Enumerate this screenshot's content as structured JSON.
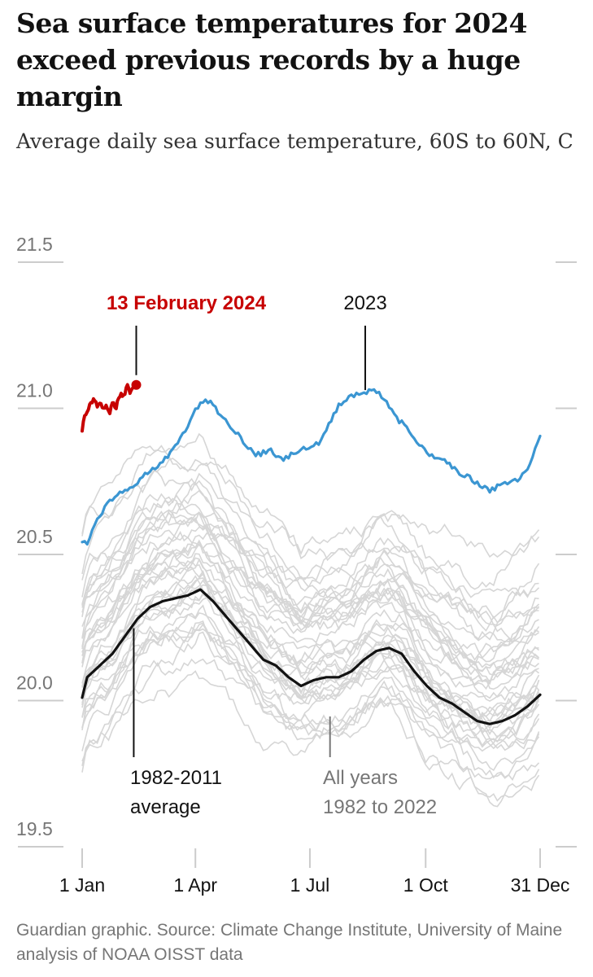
{
  "header": {
    "title": "Sea surface temperatures for 2024 exceed previous records by a huge margin",
    "subtitle": "Average daily sea surface temperature, 60S to 60N, C"
  },
  "footer": {
    "source": "Guardian graphic. Source: Climate Change Institute, University of Maine analysis of NOAA OISST data"
  },
  "colors": {
    "y2024": "#c70000",
    "y2023": "#3b96d2",
    "average": "#121212",
    "history": "#d6d6d6",
    "axis": "#cccccc"
  },
  "chart_data": {
    "type": "line",
    "title": "Sea surface temperatures for 2024 exceed previous records by a huge margin",
    "ylabel": "Average daily sea surface temperature, 60S to 60N, C",
    "xlabel": "",
    "ylim": [
      19.5,
      21.5
    ],
    "xlim": [
      1,
      365
    ],
    "y_ticks": [
      {
        "value": 21.5,
        "label": "21.5"
      },
      {
        "value": 21.0,
        "label": "21.0"
      },
      {
        "value": 20.5,
        "label": "20.5"
      },
      {
        "value": 20.0,
        "label": "20.0"
      },
      {
        "value": 19.5,
        "label": "19.5"
      }
    ],
    "x_ticks": [
      {
        "day": 1,
        "label": "1 Jan"
      },
      {
        "day": 91,
        "label": "1 Apr"
      },
      {
        "day": 182,
        "label": "1 Jul"
      },
      {
        "day": 274,
        "label": "1 Oct"
      },
      {
        "day": 365,
        "label": "31 Dec"
      }
    ],
    "series": [
      {
        "name": "2024",
        "days": [
          1,
          3,
          5,
          8,
          10,
          13,
          15,
          18,
          20,
          23,
          25,
          28,
          30,
          32,
          34,
          37,
          39,
          41,
          42,
          44
        ],
        "values": [
          20.93,
          20.97,
          20.99,
          21.02,
          21.03,
          21.01,
          21.02,
          21.0,
          21.01,
          20.99,
          21.02,
          21.0,
          21.04,
          21.05,
          21.04,
          21.08,
          21.06,
          21.07,
          21.08,
          21.08
        ]
      },
      {
        "name": "2023",
        "days": [
          1,
          5,
          10,
          15,
          20,
          30,
          40,
          50,
          60,
          70,
          80,
          85,
          90,
          95,
          100,
          105,
          115,
          125,
          130,
          140,
          150,
          160,
          170,
          180,
          190,
          200,
          205,
          215,
          225,
          230,
          235,
          240,
          250,
          260,
          270,
          280,
          290,
          300,
          310,
          315,
          325,
          335,
          345,
          355,
          365
        ],
        "values": [
          20.55,
          20.53,
          20.6,
          20.63,
          20.67,
          20.71,
          20.73,
          20.77,
          20.8,
          20.84,
          20.91,
          20.94,
          20.99,
          21.02,
          21.03,
          21.01,
          20.96,
          20.91,
          20.87,
          20.84,
          20.86,
          20.82,
          20.85,
          20.87,
          20.88,
          20.97,
          21.01,
          21.04,
          21.05,
          21.07,
          21.06,
          21.04,
          20.97,
          20.93,
          20.87,
          20.83,
          20.82,
          20.78,
          20.76,
          20.74,
          20.72,
          20.74,
          20.75,
          20.79,
          20.9
        ]
      },
      {
        "name": "1982-2011 average",
        "days": [
          1,
          5,
          15,
          25,
          35,
          45,
          55,
          65,
          75,
          85,
          95,
          105,
          115,
          125,
          135,
          145,
          155,
          165,
          175,
          185,
          195,
          205,
          215,
          225,
          235,
          245,
          255,
          265,
          275,
          285,
          295,
          305,
          315,
          325,
          335,
          345,
          355,
          365
        ],
        "values": [
          20.01,
          20.08,
          20.12,
          20.16,
          20.22,
          20.28,
          20.32,
          20.34,
          20.35,
          20.36,
          20.38,
          20.34,
          20.29,
          20.24,
          20.19,
          20.14,
          20.12,
          20.08,
          20.05,
          20.07,
          20.08,
          20.08,
          20.1,
          20.14,
          20.17,
          20.18,
          20.16,
          20.1,
          20.05,
          20.01,
          19.99,
          19.96,
          19.93,
          19.92,
          19.93,
          19.95,
          19.98,
          20.02
        ]
      }
    ],
    "background_series": {
      "name": "All years 1982 to 2022",
      "note": "one faint grey line per year",
      "count": 41,
      "years": [
        1982,
        1983,
        1984,
        1985,
        1986,
        1987,
        1988,
        1989,
        1990,
        1991,
        1992,
        1993,
        1994,
        1995,
        1996,
        1997,
        1998,
        1999,
        2000,
        2001,
        2002,
        2003,
        2004,
        2005,
        2006,
        2007,
        2008,
        2009,
        2010,
        2011,
        2012,
        2013,
        2014,
        2015,
        2016,
        2017,
        2018,
        2019,
        2020,
        2021,
        2022
      ],
      "shape_days": [
        1,
        30,
        60,
        91,
        121,
        152,
        182,
        213,
        244,
        274,
        305,
        335,
        365
      ],
      "shape_anomaly": [
        0.0,
        0.12,
        0.27,
        0.36,
        0.25,
        0.1,
        0.06,
        0.14,
        0.16,
        0.02,
        -0.06,
        -0.08,
        -0.01
      ],
      "offsets_range": [
        -0.25,
        0.55
      ]
    },
    "annotations": [
      {
        "label": "13 February 2024",
        "series": "2024",
        "day": 44,
        "value": 21.08,
        "color": "#c70000",
        "placement": "above"
      },
      {
        "label": "2023",
        "series": "2023",
        "day": 226,
        "value": 21.04,
        "color": "#121212",
        "placement": "above"
      },
      {
        "label": "1982-2011 average",
        "lines": [
          "1982-2011",
          "average"
        ],
        "series": "1982-2011 average",
        "day": 42,
        "value": 20.27,
        "color": "#121212",
        "placement": "below"
      },
      {
        "label": "All years 1982 to 2022",
        "lines": [
          "All years",
          "1982 to 2022"
        ],
        "series": "All years 1982 to 2022",
        "day": 198,
        "value": 19.91,
        "color": "#767676",
        "placement": "below"
      }
    ]
  }
}
